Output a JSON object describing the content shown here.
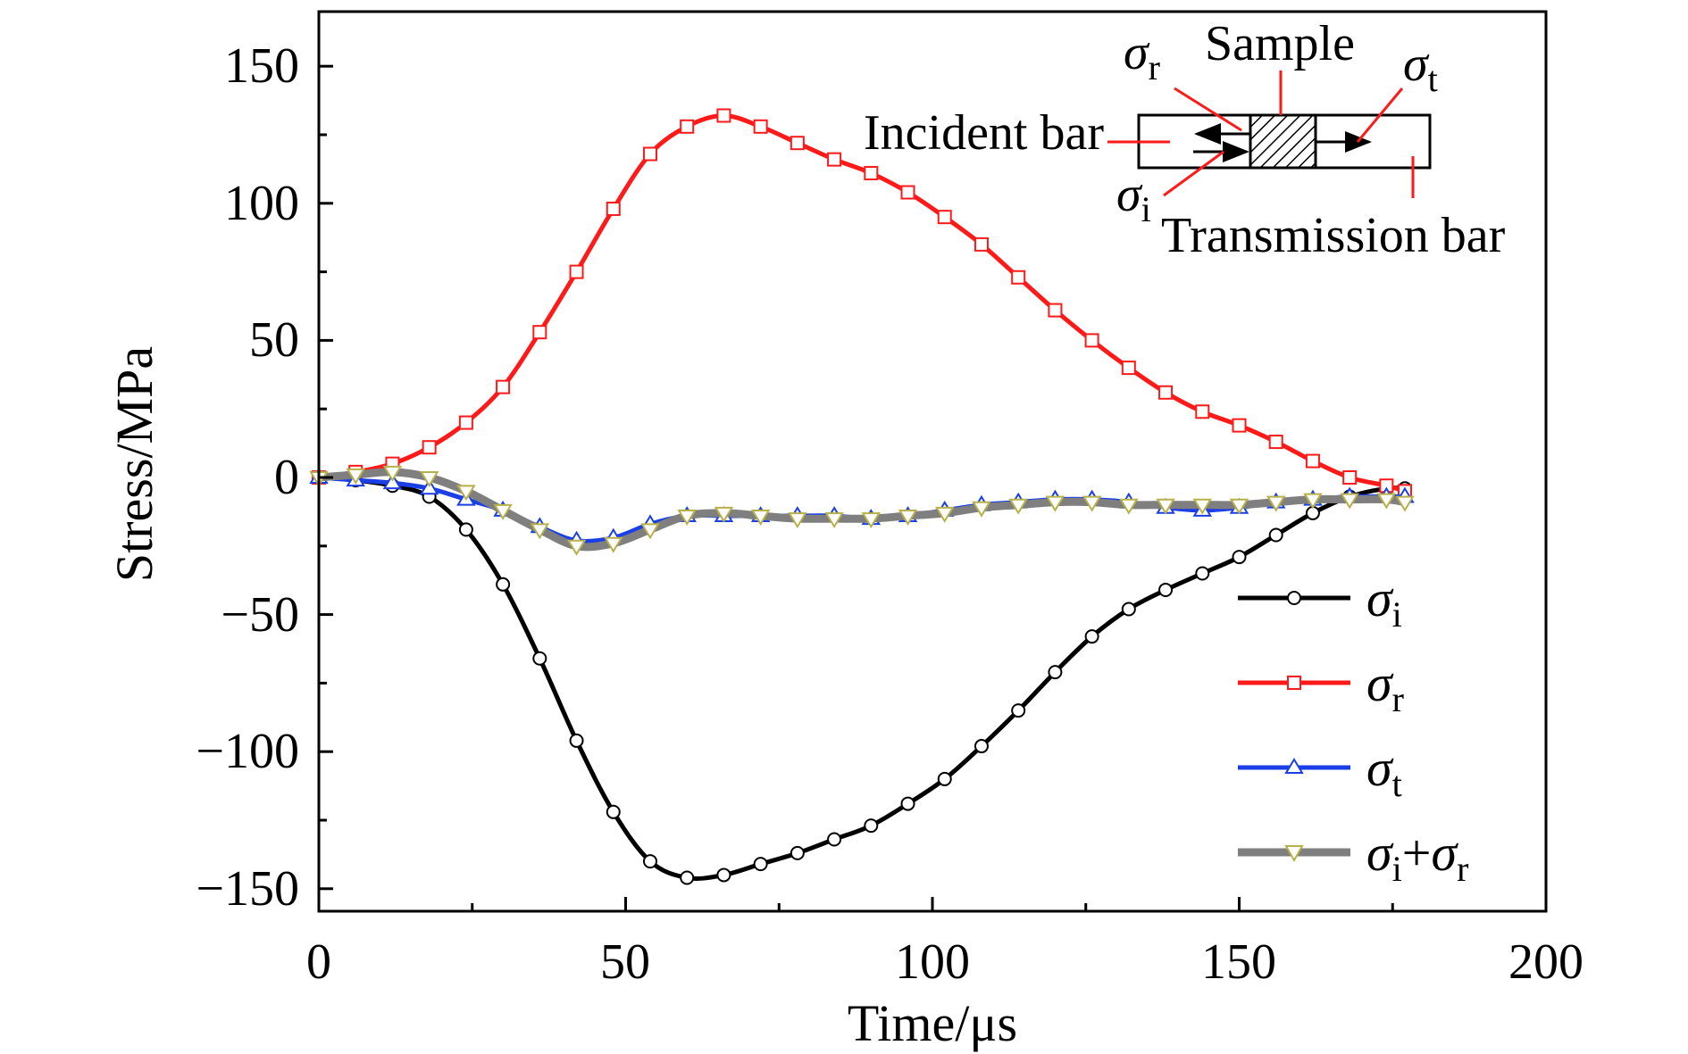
{
  "chart_data": {
    "type": "line",
    "xlabel": "Time/μs",
    "ylabel": "Stress/MPa",
    "xlim": [
      0,
      200
    ],
    "ylim": [
      -160,
      170
    ],
    "x_ticks": [
      0,
      50,
      100,
      150,
      200
    ],
    "x_tick_labels": [
      "0",
      "50",
      "100",
      "150",
      "200"
    ],
    "y_ticks": [
      150,
      100,
      50,
      0,
      -50,
      -100,
      -150
    ],
    "y_tick_labels": [
      "150",
      "100",
      "50",
      "0",
      "−50",
      "−100",
      "−150"
    ],
    "grid": false,
    "legend_position": "lower-right",
    "series": [
      {
        "name": "σi",
        "symbol": "σ",
        "subscript": "i",
        "color": "#000000",
        "marker": "circle",
        "x": [
          0,
          6,
          12,
          18,
          24,
          30,
          36,
          42,
          48,
          54,
          60,
          66,
          72,
          78,
          84,
          90,
          96,
          102,
          108,
          114,
          120,
          126,
          132,
          138,
          144,
          150,
          156,
          162,
          168,
          174,
          177
        ],
        "y": [
          0,
          -1,
          -3,
          -7,
          -19,
          -39,
          -66,
          -96,
          -122,
          -140,
          -146,
          -145,
          -141,
          -137,
          -132,
          -127,
          -119,
          -110,
          -98,
          -85,
          -71,
          -58,
          -48,
          -41,
          -35,
          -29,
          -21,
          -13,
          -7,
          -4,
          -4
        ]
      },
      {
        "name": "σr",
        "symbol": "σ",
        "subscript": "r",
        "color": "#ff1a1a",
        "marker": "square",
        "x": [
          0,
          6,
          12,
          18,
          24,
          30,
          36,
          42,
          48,
          54,
          60,
          66,
          72,
          78,
          84,
          90,
          96,
          102,
          108,
          114,
          120,
          126,
          132,
          138,
          144,
          150,
          156,
          162,
          168,
          174,
          177
        ],
        "y": [
          0,
          2,
          5,
          11,
          20,
          33,
          53,
          75,
          98,
          118,
          128,
          132,
          128,
          122,
          116,
          111,
          104,
          95,
          85,
          73,
          61,
          50,
          40,
          31,
          24,
          19,
          13,
          6,
          0,
          -3,
          -5
        ]
      },
      {
        "name": "σt",
        "symbol": "σ",
        "subscript": "t",
        "color": "#1a3fe6",
        "marker": "triangle-up",
        "x": [
          0,
          6,
          12,
          18,
          24,
          30,
          36,
          42,
          48,
          54,
          60,
          66,
          72,
          78,
          84,
          90,
          96,
          102,
          108,
          114,
          120,
          126,
          132,
          138,
          144,
          150,
          156,
          162,
          168,
          174,
          177
        ],
        "y": [
          0,
          -1,
          -2,
          -4,
          -8,
          -12,
          -18,
          -23,
          -22,
          -17,
          -14,
          -14,
          -14,
          -14,
          -14,
          -15,
          -14,
          -12,
          -10,
          -9,
          -8,
          -8,
          -9,
          -11,
          -12,
          -11,
          -9,
          -8,
          -7,
          -7,
          -7
        ]
      },
      {
        "name": "σi+σr",
        "symbol": "σ",
        "subscript": "i",
        "symbol2": "σ",
        "subscript2": "r",
        "color": "#7f7f7f",
        "marker": "triangle-down",
        "x": [
          0,
          6,
          12,
          18,
          24,
          30,
          36,
          42,
          48,
          54,
          60,
          66,
          72,
          78,
          84,
          90,
          96,
          102,
          108,
          114,
          120,
          126,
          132,
          138,
          144,
          150,
          156,
          162,
          168,
          174,
          177
        ],
        "y": [
          0,
          1,
          2,
          0,
          -5,
          -12,
          -19,
          -25,
          -24,
          -19,
          -14,
          -13,
          -14,
          -15,
          -15,
          -15,
          -14,
          -13,
          -11,
          -10,
          -9,
          -9,
          -10,
          -10,
          -10,
          -10,
          -9,
          -8,
          -8,
          -8,
          -9
        ]
      }
    ],
    "inset": {
      "labels": {
        "incident_bar": "Incident bar",
        "sample": "Sample",
        "transmission_bar": "Transmission bar"
      },
      "sigma_r": {
        "symbol": "σ",
        "subscript": "r"
      },
      "sigma_t": {
        "symbol": "σ",
        "subscript": "t"
      },
      "sigma_i": {
        "symbol": "σ",
        "subscript": "i"
      }
    }
  }
}
